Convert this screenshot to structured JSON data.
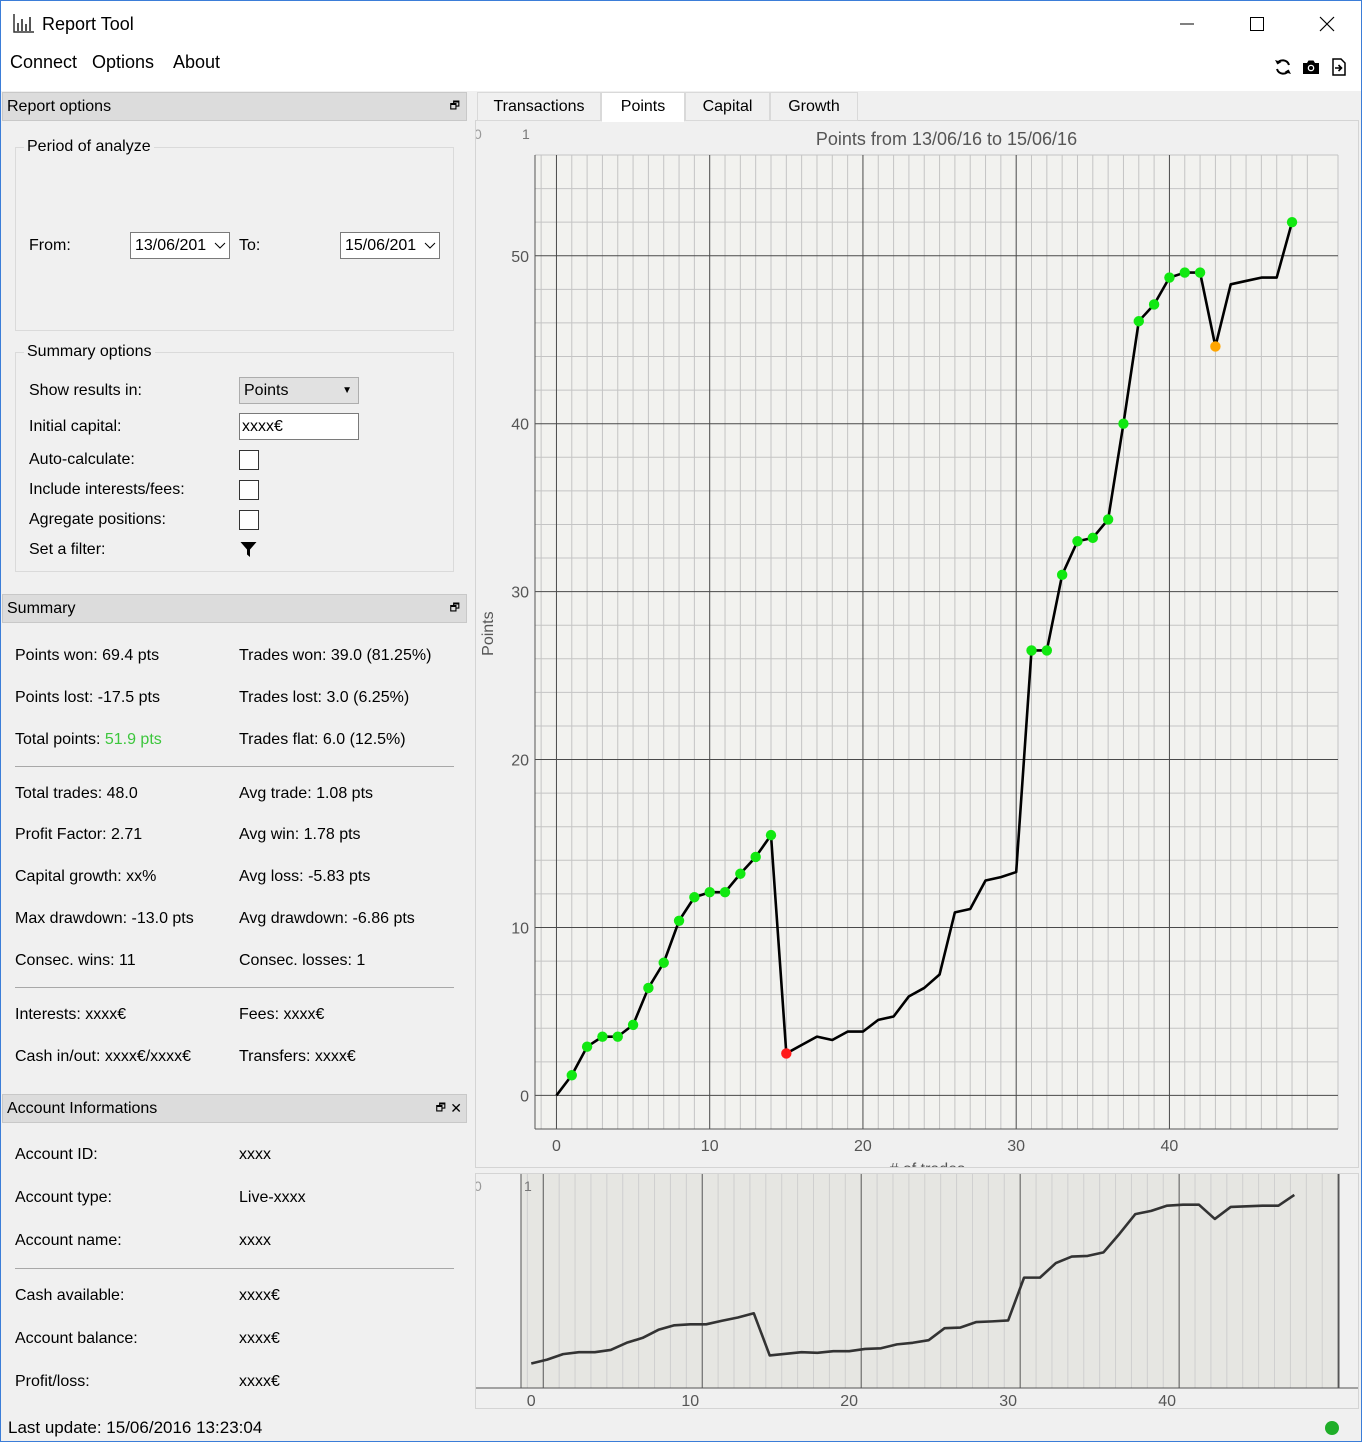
{
  "window": {
    "title": "Report Tool",
    "menu": [
      "Connect",
      "Options",
      "About"
    ]
  },
  "report_options": {
    "title": "Report options",
    "period": {
      "title": "Period of analyze",
      "from_label": "From:",
      "from_value": "13/06/201",
      "to_label": "To:",
      "to_value": "15/06/201"
    },
    "summary_options": {
      "title": "Summary options",
      "show_results_label": "Show results in:",
      "show_results_value": "Points",
      "initial_capital_label": "Initial capital:",
      "initial_capital_value": "xxxx€",
      "auto_calculate_label": "Auto-calculate:",
      "include_fees_label": "Include interests/fees:",
      "aggregate_label": "Agregate positions:",
      "filter_label": "Set a filter:"
    }
  },
  "summary": {
    "title": "Summary",
    "points_won": "Points won: 69.4 pts",
    "trades_won": "Trades won: 39.0 (81.25%)",
    "points_lost": "Points lost: -17.5 pts",
    "trades_lost": "Trades lost: 3.0 (6.25%)",
    "total_points_label": "Total points: ",
    "total_points_value": "51.9 pts",
    "trades_flat": "Trades flat: 6.0 (12.5%)",
    "total_trades": "Total trades: 48.0",
    "avg_trade": "Avg trade: 1.08 pts",
    "profit_factor": "Profit Factor: 2.71",
    "avg_win": "Avg win: 1.78 pts",
    "capital_growth": "Capital growth: xx%",
    "avg_loss": "Avg loss: -5.83 pts",
    "max_drawdown": "Max drawdown: -13.0 pts",
    "avg_drawdown": "Avg drawdown: -6.86 pts",
    "consec_wins": "Consec. wins: 11",
    "consec_losses": "Consec. losses: 1",
    "interests": "Interests: xxxx€",
    "fees": "Fees: xxxx€",
    "cash_in_out": "Cash in/out: xxxx€/xxxx€",
    "transfers": "Transfers: xxxx€",
    "positive_color": "#3cc63c"
  },
  "account": {
    "title": "Account Informations",
    "rows": [
      {
        "label": "Account ID:",
        "value": "xxxx"
      },
      {
        "label": "Account type:",
        "value": "Live-xxxx"
      },
      {
        "label": "Account name:",
        "value": "xxxx"
      },
      {
        "label": "Cash available:",
        "value": "xxxx€"
      },
      {
        "label": "Account balance:",
        "value": "xxxx€"
      },
      {
        "label": "Profit/loss:",
        "value": "xxxx€"
      }
    ]
  },
  "tabs": [
    "Transactions",
    "Points",
    "Capital",
    "Growth"
  ],
  "active_tab": "Points",
  "chart_data": {
    "type": "line",
    "title": "Points from 13/06/16 to 15/06/16",
    "xlabel": "# of trades",
    "ylabel": "Points",
    "xlim": [
      -1.4,
      51
    ],
    "ylim": [
      -2,
      56
    ],
    "xticks": [
      0,
      10,
      20,
      30,
      40
    ],
    "yticks": [
      0,
      10,
      20,
      30,
      40,
      50
    ],
    "grid": true,
    "corner_labels": [
      "0",
      "1"
    ],
    "x": [
      0,
      1,
      2,
      3,
      4,
      5,
      6,
      7,
      8,
      9,
      10,
      11,
      12,
      13,
      14,
      15,
      16,
      17,
      18,
      19,
      20,
      21,
      22,
      23,
      24,
      25,
      26,
      27,
      28,
      29,
      30,
      31,
      32,
      33,
      34,
      35,
      36,
      37,
      38,
      39,
      40,
      41,
      42,
      43,
      44,
      45,
      46,
      47,
      48
    ],
    "values": [
      0,
      1.2,
      2.9,
      3.5,
      3.5,
      4.2,
      6.4,
      7.9,
      10.4,
      11.8,
      12.1,
      12.1,
      13.2,
      14.2,
      15.5,
      2.5,
      3.0,
      3.5,
      3.3,
      3.8,
      3.8,
      4.5,
      4.7,
      5.9,
      6.4,
      7.2,
      10.9,
      11.1,
      12.8,
      13.0,
      13.3,
      26.5,
      26.5,
      31.0,
      33.0,
      33.2,
      34.3,
      40.0,
      46.1,
      47.1,
      48.7,
      49.0,
      49.0,
      44.6,
      48.3,
      48.5,
      48.7,
      48.7,
      52.0
    ],
    "markers": [
      {
        "x": 1,
        "type": "win"
      },
      {
        "x": 2,
        "type": "win"
      },
      {
        "x": 3,
        "type": "win"
      },
      {
        "x": 4,
        "type": "win"
      },
      {
        "x": 5,
        "type": "win"
      },
      {
        "x": 6,
        "type": "win"
      },
      {
        "x": 7,
        "type": "win"
      },
      {
        "x": 8,
        "type": "win"
      },
      {
        "x": 9,
        "type": "win"
      },
      {
        "x": 10,
        "type": "win"
      },
      {
        "x": 11,
        "type": "win"
      },
      {
        "x": 12,
        "type": "win"
      },
      {
        "x": 13,
        "type": "win"
      },
      {
        "x": 14,
        "type": "win"
      },
      {
        "x": 15,
        "type": "loss"
      },
      {
        "x": 31,
        "type": "win"
      },
      {
        "x": 32,
        "type": "win"
      },
      {
        "x": 33,
        "type": "win"
      },
      {
        "x": 34,
        "type": "win"
      },
      {
        "x": 35,
        "type": "win"
      },
      {
        "x": 36,
        "type": "win"
      },
      {
        "x": 37,
        "type": "win"
      },
      {
        "x": 38,
        "type": "win"
      },
      {
        "x": 39,
        "type": "win"
      },
      {
        "x": 40,
        "type": "win"
      },
      {
        "x": 41,
        "type": "win"
      },
      {
        "x": 42,
        "type": "win"
      },
      {
        "x": 43,
        "type": "drawdown"
      },
      {
        "x": 48,
        "type": "win"
      }
    ],
    "colors": {
      "line": "#000000",
      "win": "#11e811",
      "loss": "#ff1a1a",
      "drawdown": "#ffa500",
      "plot_bg": "#f2f2ef",
      "grid_major": "#4a4a4a",
      "grid_minor": "#c4c4c4"
    }
  },
  "overview_chart": {
    "type": "line",
    "xticks": [
      0,
      10,
      20,
      30,
      40
    ],
    "corner_labels": [
      "0",
      "1"
    ],
    "line_color": "#333333",
    "selection_bg": "#e6e6e2"
  },
  "status": {
    "last_update": "Last update: 15/06/2016 13:23:04",
    "connected_color": "#1fae28"
  }
}
